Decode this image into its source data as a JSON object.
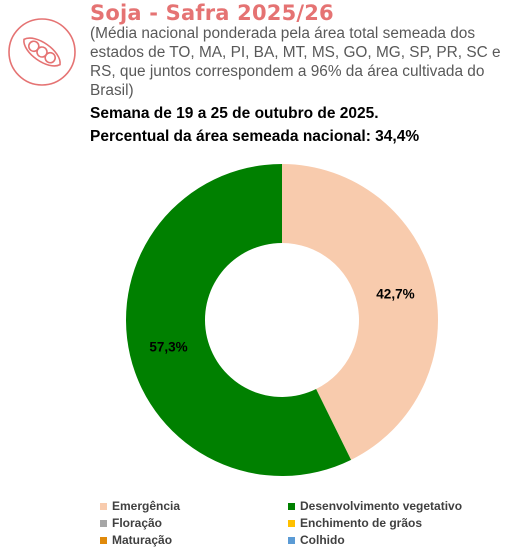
{
  "header": {
    "title": "Soja - Safra 2025/26",
    "subtitle": "(Média nacional ponderada pela área total semeada dos estados de TO, MA, PI, BA, MT, MS, GO, MG, SP, PR, SC e RS, que juntos correspondem a 96% da área cultivada do Brasil)",
    "week": "Semana de 19 a 25 de outubro de 2025.",
    "pct": "Percentual da área semeada nacional: 34,4%",
    "logo_icon": "soybean-pod-icon"
  },
  "chart_data": {
    "type": "pie",
    "donut": true,
    "categories": [
      "Emergência",
      "Desenvolvimento vegetativo",
      "Floração",
      "Enchimento de grãos",
      "Maturação",
      "Colhido"
    ],
    "values": [
      42.7,
      57.3,
      0,
      0,
      0,
      0
    ],
    "data_labels": [
      "42,7%",
      "57,3%",
      "",
      "",
      "",
      ""
    ],
    "colors": [
      "#f8cbad",
      "#008000",
      "#a6a6a6",
      "#ffc000",
      "#e08a0b",
      "#5b9bd5"
    ],
    "legend_position": "bottom"
  }
}
